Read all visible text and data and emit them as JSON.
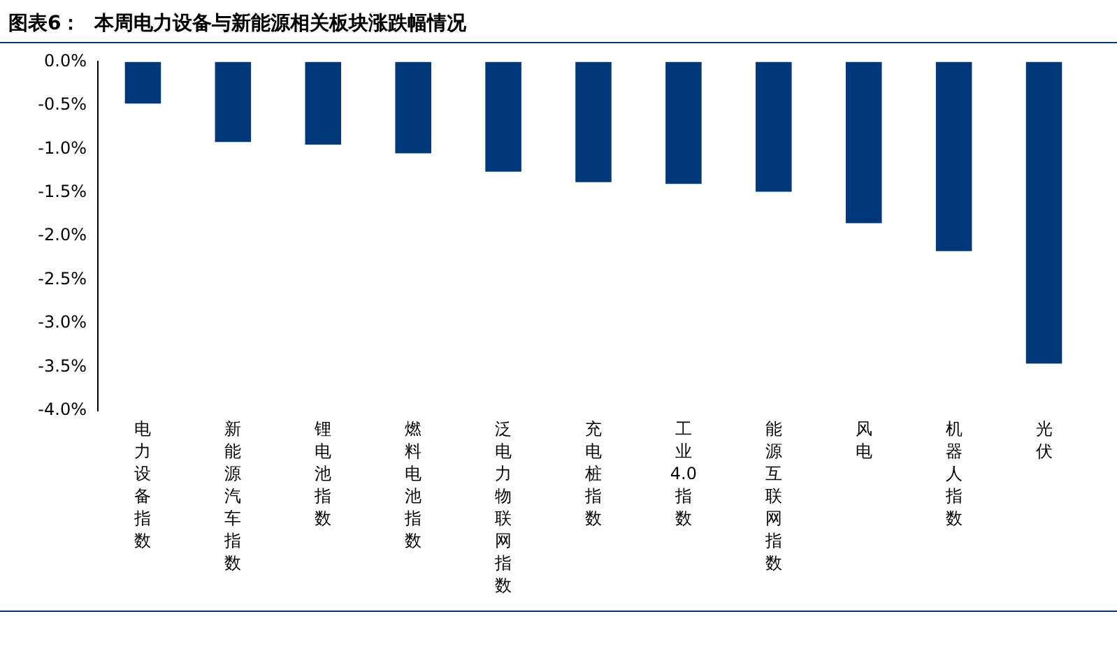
{
  "chart_data": {
    "type": "bar",
    "title": "图表6：  本周电力设备与新能源相关板块涨跌幅情况",
    "categories": [
      "电力设备指数",
      "新能源汽车指数",
      "锂电池指数",
      "燃料电池指数",
      "泛电力物联网指数",
      "充电桩指数",
      "工业4.0指数",
      "能源互联网指数",
      "风电",
      "机器人指数",
      "光伏"
    ],
    "values": [
      -0.48,
      -0.92,
      -0.95,
      -1.05,
      -1.26,
      -1.38,
      -1.4,
      -1.49,
      -1.85,
      -2.17,
      -3.46
    ],
    "color": "#00387a",
    "ylim": [
      -4.0,
      0
    ],
    "yticks": [
      {
        "value": 0,
        "label": "0.0%"
      },
      {
        "value": -0.5,
        "label": "-0.5%"
      },
      {
        "value": -1.0,
        "label": "-1.0%"
      },
      {
        "value": -1.5,
        "label": "-1.5%"
      },
      {
        "value": -2.0,
        "label": "-2.0%"
      },
      {
        "value": -2.5,
        "label": "-2.5%"
      },
      {
        "value": -3.0,
        "label": "-3.0%"
      },
      {
        "value": -3.5,
        "label": "-3.5%"
      },
      {
        "value": -4.0,
        "label": "-4.0%"
      }
    ],
    "grid": false,
    "legend": false
  }
}
